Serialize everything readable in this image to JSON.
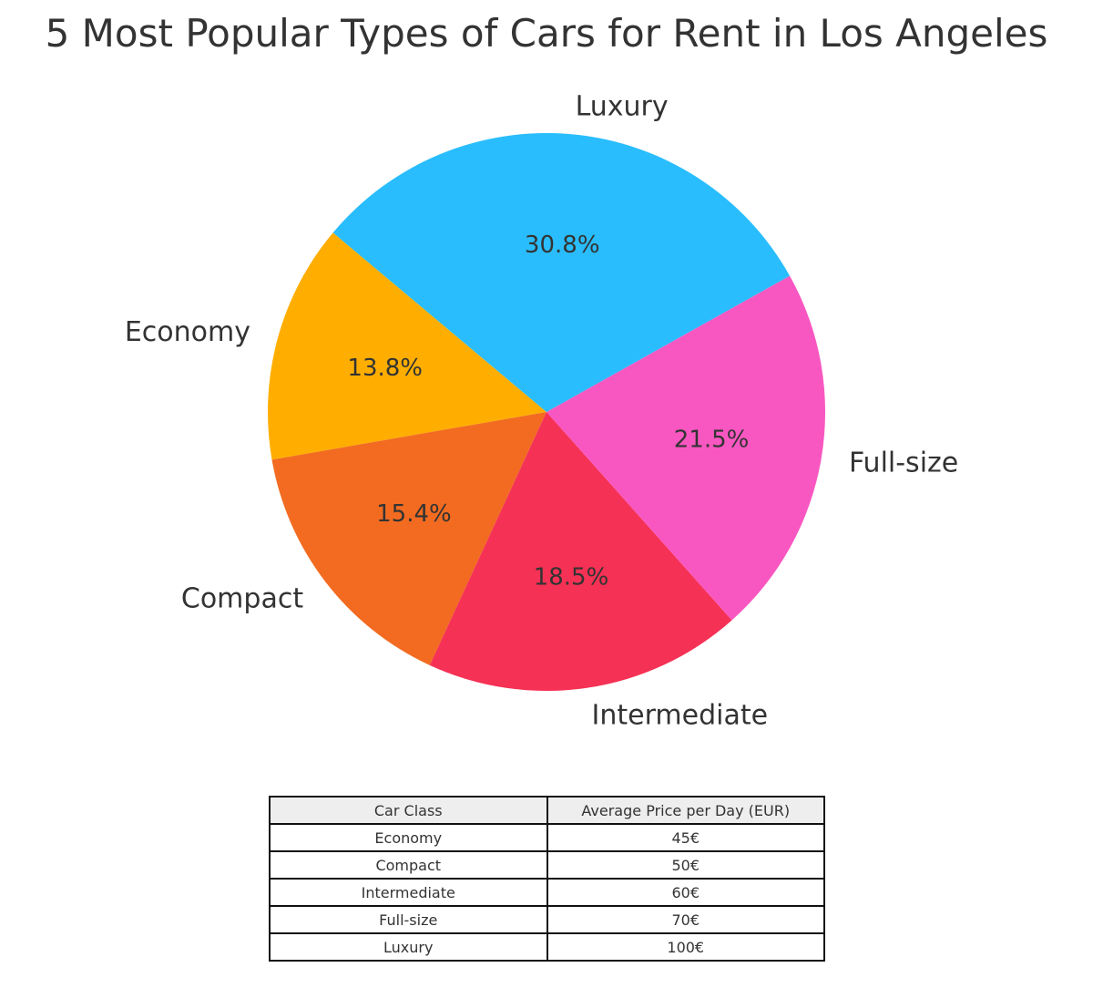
{
  "chart_data": {
    "type": "pie",
    "title": "5 Most Popular Types of Cars for Rent in Los Angeles",
    "categories": [
      "Economy",
      "Compact",
      "Intermediate",
      "Full-size",
      "Luxury"
    ],
    "values": [
      45,
      50,
      60,
      70,
      100
    ],
    "percent_labels": [
      "13.8%",
      "15.4%",
      "18.5%",
      "21.5%",
      "30.8%"
    ],
    "colors": [
      "#FFAE00",
      "#F26B21",
      "#F53155",
      "#F857C1",
      "#29BDFD"
    ],
    "start_angle_deg": 140,
    "direction": "counterclockwise",
    "legend": "none"
  },
  "table": {
    "headers": [
      "Car Class",
      "Average Price per Day (EUR)"
    ],
    "rows": [
      [
        "Economy",
        "45€"
      ],
      [
        "Compact",
        "50€"
      ],
      [
        "Intermediate",
        "60€"
      ],
      [
        "Full-size",
        "70€"
      ],
      [
        "Luxury",
        "100€"
      ]
    ]
  }
}
